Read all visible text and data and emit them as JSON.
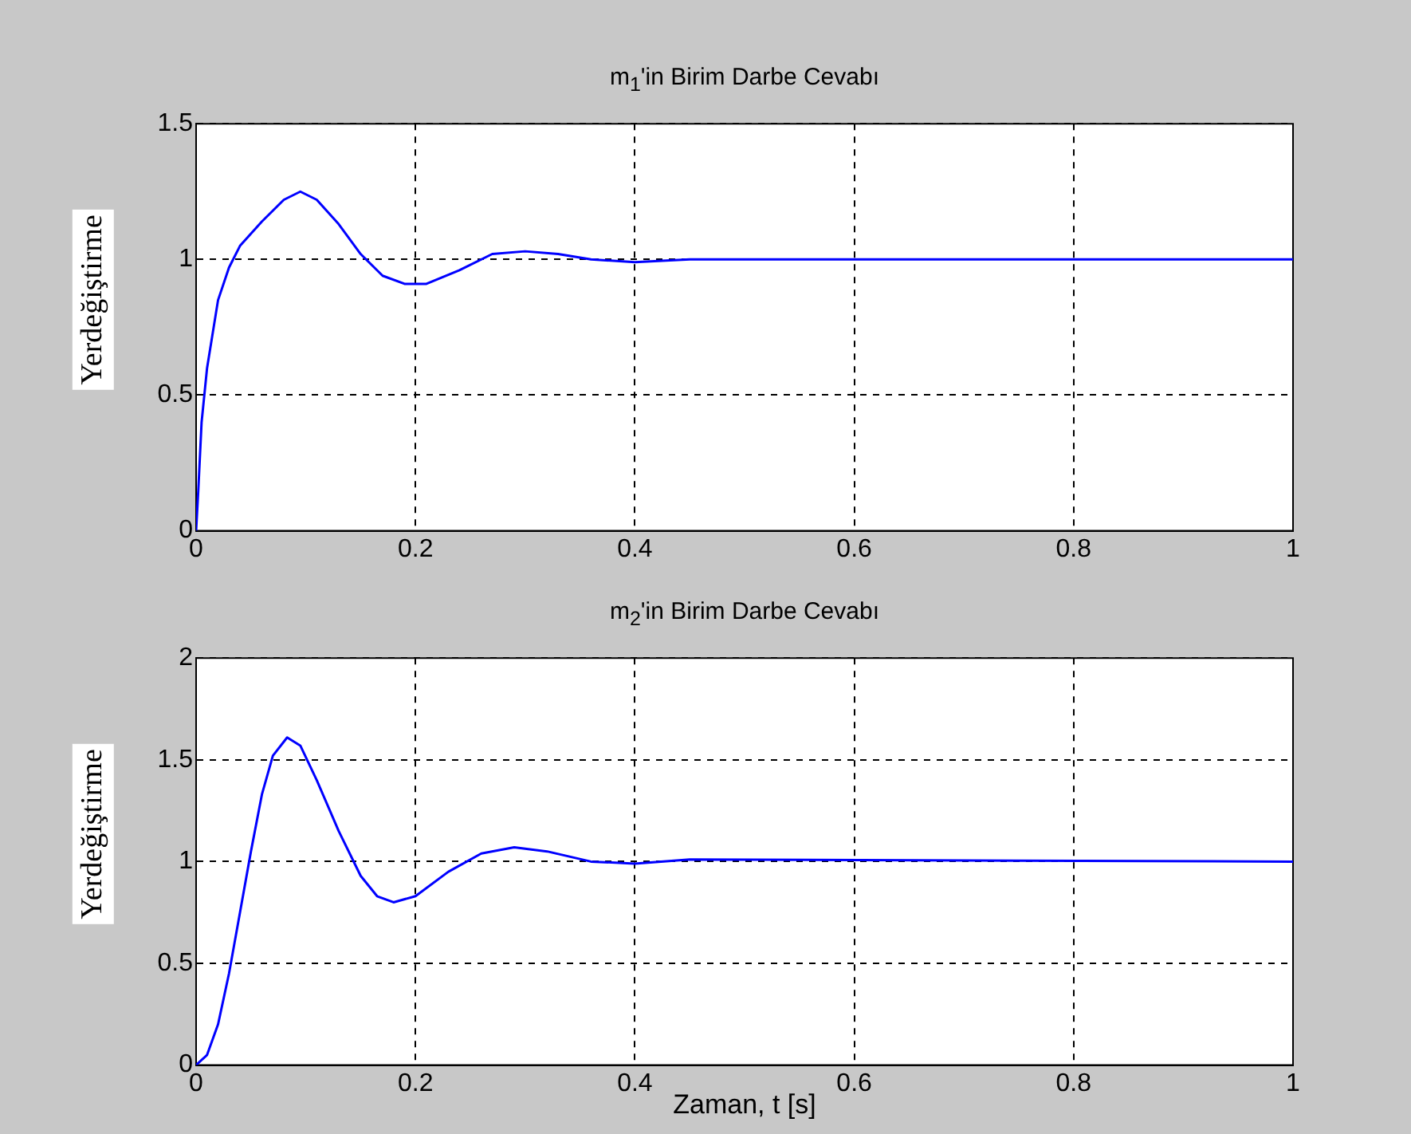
{
  "chart_data": [
    {
      "type": "line",
      "title": "m$_{1}$'in Birim Darbe Cevabı",
      "ylabel": "Yerdeğiştirme",
      "xlim": [
        0,
        1
      ],
      "xticks": [
        0,
        0.2,
        0.4,
        0.6,
        0.8,
        1
      ],
      "ylim": [
        0,
        1.5
      ],
      "yticks": [
        0,
        0.5,
        1,
        1.5
      ],
      "grid": true,
      "legend": false,
      "marker": "none",
      "line_style": "solid",
      "series": [
        {
          "color": "#0000ff",
          "x": [
            0,
            0.002,
            0.005,
            0.01,
            0.02,
            0.03,
            0.04,
            0.06,
            0.08,
            0.095,
            0.11,
            0.13,
            0.15,
            0.17,
            0.19,
            0.21,
            0.24,
            0.27,
            0.3,
            0.33,
            0.36,
            0.4,
            0.45,
            1
          ],
          "values": [
            0,
            0.15,
            0.4,
            0.6,
            0.85,
            0.97,
            1.05,
            1.14,
            1.22,
            1.25,
            1.22,
            1.13,
            1.02,
            0.94,
            0.91,
            0.91,
            0.96,
            1.02,
            1.03,
            1.02,
            1,
            0.99,
            1,
            1
          ]
        }
      ]
    },
    {
      "type": "line",
      "title": "m$_{2}$'in Birim Darbe Cevabı",
      "xlabel": "Zaman, t [s]",
      "ylabel": "Yerdeğiştirme",
      "xlim": [
        0,
        1
      ],
      "xticks": [
        0,
        0.2,
        0.4,
        0.6,
        0.8,
        1
      ],
      "ylim": [
        0,
        2
      ],
      "yticks": [
        0,
        0.5,
        1,
        1.5,
        2
      ],
      "grid": true,
      "legend": false,
      "marker": "none",
      "line_style": "solid",
      "series": [
        {
          "color": "#0000ff",
          "x": [
            0,
            0.01,
            0.02,
            0.03,
            0.04,
            0.05,
            0.06,
            0.07,
            0.083,
            0.095,
            0.11,
            0.13,
            0.15,
            0.165,
            0.18,
            0.2,
            0.23,
            0.26,
            0.29,
            0.32,
            0.36,
            0.4,
            0.45,
            1
          ],
          "values": [
            0,
            0.05,
            0.2,
            0.45,
            0.75,
            1.05,
            1.33,
            1.52,
            1.61,
            1.57,
            1.4,
            1.15,
            0.93,
            0.83,
            0.8,
            0.83,
            0.95,
            1.04,
            1.07,
            1.05,
            1,
            0.99,
            1.01,
            1
          ]
        }
      ]
    }
  ]
}
